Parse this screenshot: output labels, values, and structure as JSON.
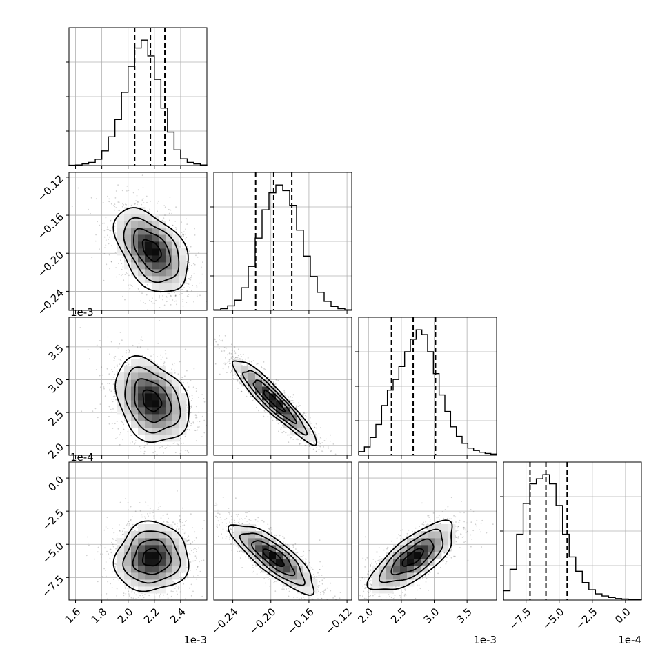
{
  "chart_data": {
    "type": "corner",
    "n_params": 4,
    "grid": true,
    "params": [
      {
        "offset_label": "1e-3",
        "range": [
          1.55,
          2.6
        ],
        "ticks": [
          1.6,
          1.8,
          2.0,
          2.2,
          2.4
        ],
        "tick_labels": [
          "1.6",
          "1.8",
          "2.0",
          "2.2",
          "2.4"
        ],
        "quantiles": [
          2.05,
          2.17,
          2.28
        ]
      },
      {
        "offset_label": "",
        "range": [
          -0.26,
          -0.115
        ],
        "ticks": [
          -0.24,
          -0.2,
          -0.16,
          -0.12
        ],
        "tick_labels": [
          "−0.24",
          "−0.20",
          "−0.16",
          "−0.12"
        ],
        "quantiles": [
          -0.216,
          -0.197,
          -0.178
        ]
      },
      {
        "offset_label": "1e-3",
        "range": [
          1.85,
          3.95
        ],
        "ticks": [
          2.0,
          2.5,
          3.0,
          3.5
        ],
        "tick_labels": [
          "2.0",
          "2.5",
          "3.0",
          "3.5"
        ],
        "quantiles": [
          2.35,
          2.68,
          3.02
        ]
      },
      {
        "offset_label": "1e-4",
        "range": [
          -9.2,
          1.2
        ],
        "ticks": [
          -7.5,
          -5.0,
          -2.5,
          0.0
        ],
        "tick_labels": [
          "−7.5",
          "−5.0",
          "−2.5",
          "0.0"
        ],
        "quantiles": [
          -7.2,
          -6.0,
          -4.4
        ]
      }
    ],
    "histograms": [
      {
        "counts": [
          0.5,
          1,
          3,
          6,
          12,
          28,
          55,
          88,
          140,
          190,
          225,
          240,
          210,
          165,
          110,
          64,
          30,
          13,
          6,
          3,
          1
        ]
      },
      {
        "counts": [
          1,
          3,
          8,
          18,
          40,
          78,
          128,
          178,
          208,
          222,
          212,
          186,
          142,
          96,
          60,
          32,
          16,
          7,
          3,
          1
        ]
      },
      {
        "counts": [
          6,
          14,
          30,
          52,
          84,
          110,
          128,
          150,
          175,
          196,
          212,
          204,
          175,
          138,
          102,
          74,
          48,
          32,
          20,
          12,
          8,
          5,
          3,
          2
        ]
      },
      {
        "counts": [
          18,
          60,
          128,
          188,
          226,
          236,
          244,
          226,
          184,
          128,
          84,
          56,
          34,
          20,
          12,
          8,
          5,
          3,
          2,
          1,
          0.5
        ]
      }
    ],
    "pairs": [
      {
        "row": 1,
        "col": 0,
        "mean": [
          2.18,
          -0.197
        ],
        "sd": [
          0.14,
          0.022
        ],
        "corr": -0.45
      },
      {
        "row": 2,
        "col": 0,
        "mean": [
          2.18,
          2.68
        ],
        "sd": [
          0.14,
          0.32
        ],
        "corr": -0.3
      },
      {
        "row": 2,
        "col": 1,
        "mean": [
          -0.197,
          2.68
        ],
        "sd": [
          0.022,
          0.32
        ],
        "corr": -0.93
      },
      {
        "row": 3,
        "col": 0,
        "mean": [
          2.18,
          -6.0
        ],
        "sd": [
          0.14,
          1.3
        ],
        "corr": 0.05
      },
      {
        "row": 3,
        "col": 1,
        "mean": [
          -0.197,
          -6.0
        ],
        "sd": [
          0.022,
          1.3
        ],
        "corr": -0.82
      },
      {
        "row": 3,
        "col": 2,
        "mean": [
          2.68,
          -6.0
        ],
        "sd": [
          0.32,
          1.3
        ],
        "corr": 0.72
      }
    ]
  }
}
